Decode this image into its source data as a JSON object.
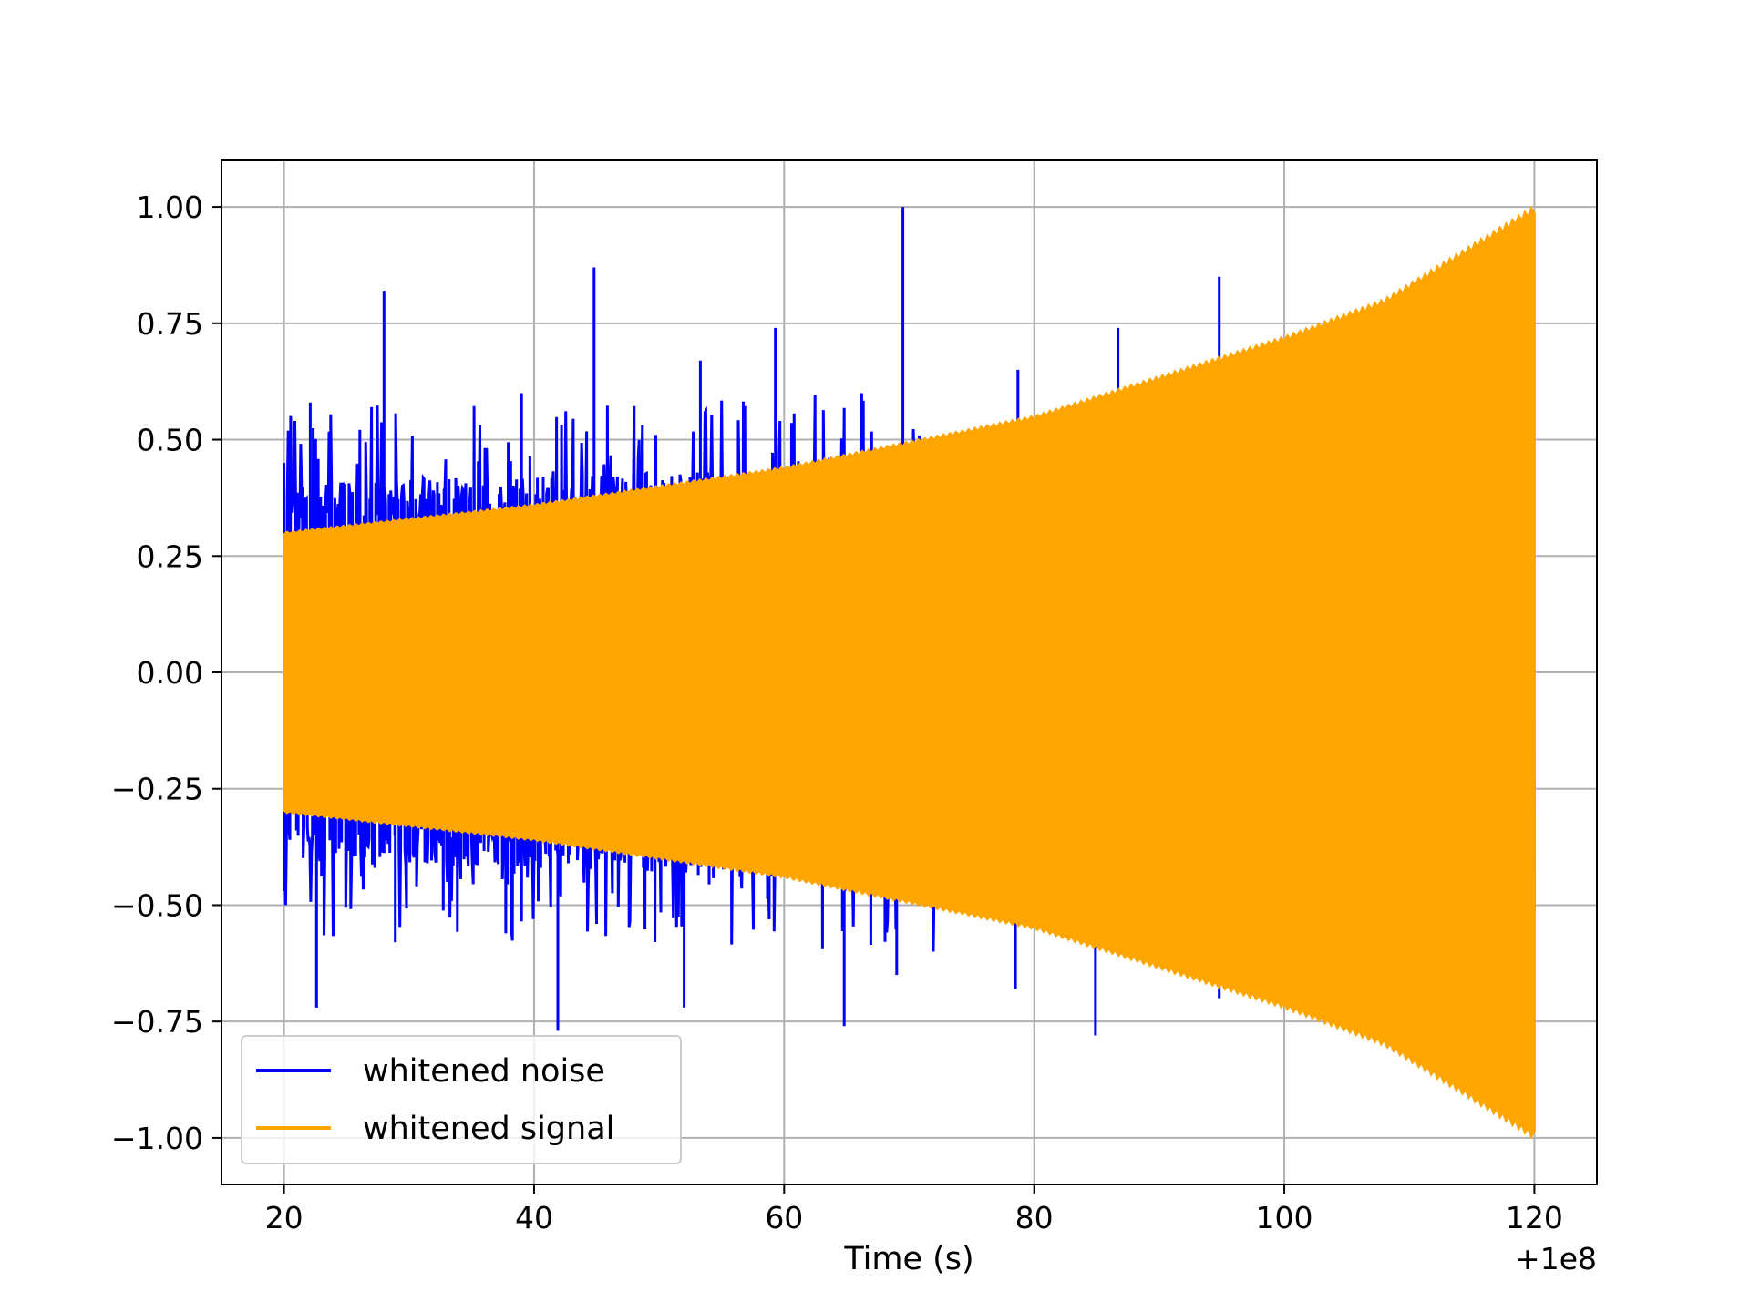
{
  "chart_data": {
    "type": "line",
    "title": "",
    "xlabel": "Time (s)",
    "ylabel": "",
    "x_offset_label": "+1e8",
    "xlim": [
      15,
      125
    ],
    "ylim": [
      -1.1,
      1.1
    ],
    "xticks": [
      20,
      40,
      60,
      80,
      100,
      120
    ],
    "yticks": [
      1.0,
      0.75,
      0.5,
      0.25,
      0.0,
      -0.25,
      -0.5,
      -0.75,
      -1.0
    ],
    "xtick_labels": [
      "20",
      "40",
      "60",
      "80",
      "100",
      "120"
    ],
    "ytick_labels": [
      "1.00",
      "0.75",
      "0.50",
      "0.25",
      "0.00",
      "−0.25",
      "−0.50",
      "−0.75",
      "−1.00"
    ],
    "grid": true,
    "legend_position": "lower-left",
    "legend": [
      "whitened noise",
      "whitened signal"
    ],
    "series": [
      {
        "name": "whitened noise",
        "color": "#0000ff",
        "description_samples": {
          "x_range": [
            20,
            120
          ],
          "upper_peaks": [
            [
              20.0,
              0.45
            ],
            [
              22.1,
              0.58
            ],
            [
              28.0,
              0.82
            ],
            [
              39.0,
              0.6
            ],
            [
              44.8,
              0.87
            ],
            [
              53.3,
              0.67
            ],
            [
              59.3,
              0.74
            ],
            [
              66.2,
              0.6
            ],
            [
              69.5,
              1.0
            ],
            [
              73.2,
              0.5
            ],
            [
              78.7,
              0.65
            ],
            [
              86.7,
              0.74
            ],
            [
              94.8,
              0.85
            ]
          ],
          "lower_peaks": [
            [
              20.0,
              -0.47
            ],
            [
              22.6,
              -0.72
            ],
            [
              28.9,
              -0.58
            ],
            [
              41.9,
              -0.77
            ],
            [
              52.0,
              -0.72
            ],
            [
              64.8,
              -0.76
            ],
            [
              69.0,
              -0.65
            ],
            [
              78.5,
              -0.68
            ],
            [
              84.9,
              -0.78
            ],
            [
              94.8,
              -0.7
            ]
          ]
        }
      },
      {
        "name": "whitened signal",
        "color": "#ffa500",
        "description_samples": {
          "x_range": [
            20,
            120
          ],
          "envelope": [
            [
              20,
              0.3
            ],
            [
              40,
              0.36
            ],
            [
              60,
              0.44
            ],
            [
              80,
              0.55
            ],
            [
              100,
              0.72
            ],
            [
              108,
              0.8
            ],
            [
              120,
              1.0
            ]
          ]
        }
      }
    ]
  }
}
